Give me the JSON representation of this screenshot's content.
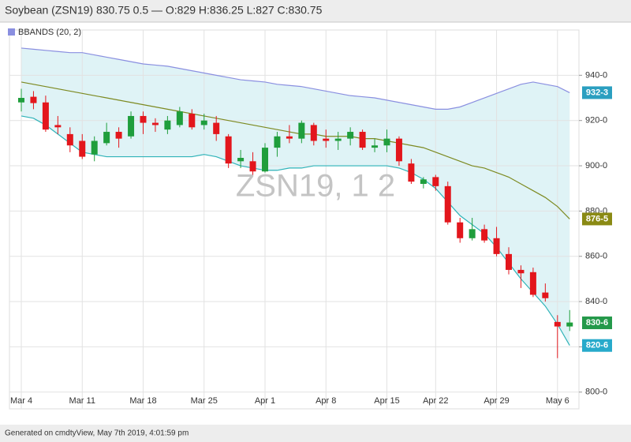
{
  "chart_data": {
    "type": "candlestick",
    "title": "Soybean (ZSN19) 830.75 0.5 — O:829 H:836.25 L:827 C:830.75",
    "legend": "BBANDS (20, 2)",
    "watermark": "ZSN19, 1 2",
    "categories": [
      "Mar 4",
      null,
      null,
      null,
      null,
      "Mar 11",
      null,
      null,
      null,
      null,
      "Mar 18",
      null,
      null,
      null,
      null,
      "Mar 25",
      null,
      null,
      null,
      null,
      "Apr 1",
      null,
      null,
      null,
      null,
      "Apr 8",
      null,
      null,
      null,
      null,
      "Apr 15",
      null,
      null,
      null,
      "Apr 22",
      null,
      null,
      null,
      null,
      "Apr 29",
      null,
      null,
      null,
      null,
      "May 6",
      null
    ],
    "open": [
      928,
      930.5,
      928,
      918,
      914,
      911,
      905,
      910,
      915,
      913,
      922,
      919,
      916,
      918,
      923,
      918,
      919,
      913,
      902,
      902,
      897.5,
      908,
      913,
      912,
      918,
      912,
      911,
      912,
      915,
      908,
      909,
      912,
      901,
      892,
      895,
      891,
      875,
      868,
      872,
      868,
      861,
      854,
      853,
      844,
      831,
      829
    ],
    "high": [
      934,
      933,
      931,
      922,
      917,
      914,
      913,
      919,
      917,
      924,
      924,
      921,
      922,
      926,
      925,
      923,
      922,
      914,
      907,
      906,
      910,
      915,
      918,
      920,
      919,
      916,
      915,
      917,
      916,
      912,
      916,
      913,
      903,
      895,
      896,
      893,
      877,
      877,
      874,
      873,
      864,
      856,
      855,
      848,
      834,
      836.25
    ],
    "low": [
      924,
      925,
      915,
      914,
      906,
      903,
      902,
      909,
      908,
      912,
      914,
      915,
      914,
      917,
      916,
      916,
      911,
      899,
      899,
      896,
      897,
      904,
      910,
      910,
      909,
      908,
      907,
      909,
      907,
      906,
      906,
      900,
      892,
      890,
      889,
      874,
      866,
      867,
      866,
      860,
      852,
      846,
      842,
      840,
      815,
      827
    ],
    "close": [
      930,
      927.7,
      916,
      917,
      909,
      904,
      911,
      915,
      912,
      922,
      919,
      918,
      920,
      924,
      917,
      920,
      914,
      901,
      903.5,
      897.5,
      908,
      913,
      912,
      919,
      911,
      911,
      912,
      915,
      908,
      909,
      912,
      902,
      893,
      894,
      891,
      875,
      868,
      872,
      867,
      861,
      854,
      852.5,
      843,
      841.5,
      829,
      830.75
    ],
    "up_color": "#1f9e3c",
    "down_color": "#e3161c",
    "bands": {
      "fill": "#dff3f6",
      "upper": {
        "color": "#8a8fe0",
        "values": [
          952,
          951.5,
          951,
          950.5,
          950,
          950,
          949,
          948,
          947,
          946,
          945,
          944.5,
          944,
          943,
          942,
          941,
          940,
          939,
          938,
          937.5,
          937,
          936,
          935.5,
          935,
          934,
          933,
          932,
          931,
          930.5,
          930,
          929,
          928,
          927,
          926,
          925,
          925,
          926,
          928,
          930,
          932,
          934,
          936,
          937,
          936,
          935,
          932.3
        ]
      },
      "middle": {
        "color": "#7d8a22",
        "values": [
          937,
          936,
          935,
          934,
          933,
          932,
          931,
          930,
          929,
          928,
          927,
          926,
          925,
          924,
          923,
          922,
          921,
          920,
          919,
          918,
          917,
          916,
          915,
          914,
          914,
          913,
          913,
          913,
          912,
          912,
          911,
          910,
          909,
          908,
          906,
          904,
          902,
          900,
          899,
          897,
          895,
          892,
          889,
          886,
          882,
          876.5
        ]
      },
      "lower": {
        "color": "#2fb3b8",
        "values": [
          922,
          921,
          918,
          914,
          910,
          906,
          905,
          904,
          904,
          904,
          904,
          904,
          904,
          904,
          904,
          905,
          904,
          902,
          900,
          899,
          898,
          898,
          899,
          899,
          900,
          900,
          900,
          900,
          900,
          900,
          900,
          899,
          897,
          894,
          890,
          884,
          878,
          874,
          870,
          864,
          857,
          850,
          844,
          838,
          830,
          820.6
        ]
      }
    },
    "ylim": [
      792.6,
      960
    ],
    "yticks": [
      {
        "value": 800,
        "label": "800-0"
      },
      {
        "value": 820,
        "label": "820-0"
      },
      {
        "value": 840,
        "label": "840-0"
      },
      {
        "value": 860,
        "label": "860-0"
      },
      {
        "value": 880,
        "label": "880-0"
      },
      {
        "value": 900,
        "label": "900-0"
      },
      {
        "value": 920,
        "label": "920-0"
      },
      {
        "value": 940,
        "label": "940-0"
      }
    ],
    "tags": [
      {
        "value": 932.3,
        "label": "932-3",
        "color": "#2b9fc0"
      },
      {
        "value": 876.5,
        "label": "876-5",
        "color": "#8a8a14"
      },
      {
        "value": 830.6,
        "label": "830-6",
        "color": "#24994a"
      },
      {
        "value": 820.6,
        "label": "820-6",
        "color": "#27aacb"
      }
    ],
    "grid": true
  },
  "footer": "Generated on cmdtyView, May 7th 2019, 4:01:59 pm"
}
